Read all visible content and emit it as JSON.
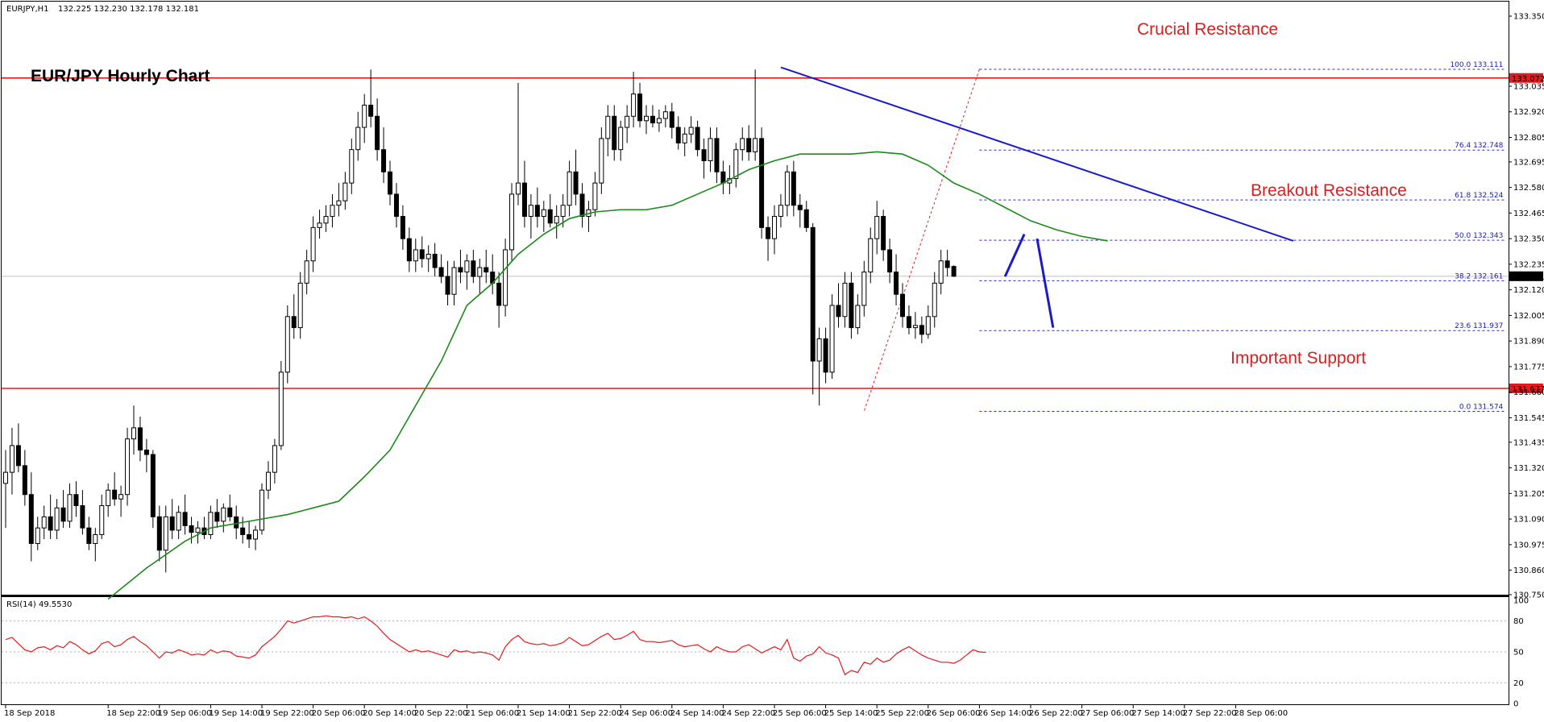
{
  "header": {
    "instrument": "EURJPY,H1",
    "ohlc": "132.225 132.230 132.178 132.181",
    "chart_title": "EUR/JPY Hourly Chart"
  },
  "rsi_header": "RSI(14) 49.5530",
  "annotations": {
    "crucial_resistance": "Crucial Resistance",
    "breakout_resistance": "Breakout Resistance",
    "important_support": "Important Support"
  },
  "colors": {
    "resistance_line": "#e01c1c",
    "trend_line": "#1a1acd",
    "moving_average": "#1a8a1a",
    "rsi_line": "#e01c1c",
    "fib_lines": "#2a2ad0",
    "candle": "#000000",
    "annotation_text": "#d42020"
  },
  "chart_data": {
    "type": "candlestick",
    "price_axis": {
      "ylim": [
        130.75,
        133.35
      ],
      "ticks": [
        133.35,
        133.035,
        132.92,
        132.805,
        132.695,
        132.58,
        132.465,
        132.35,
        132.235,
        132.12,
        132.005,
        131.89,
        131.775,
        131.66,
        131.545,
        131.435,
        131.32,
        131.205,
        131.09,
        130.975,
        130.86,
        130.75
      ],
      "tick_labels": [
        "133.350",
        "133.035",
        "132.920",
        "132.805",
        "132.695",
        "132.580",
        "132.465",
        "132.350",
        "132.235",
        "132.120",
        "132.005",
        "131.890",
        "131.775",
        "131.660",
        "131.545",
        "131.435",
        "131.320",
        "131.205",
        "131.090",
        "130.975",
        "130.860",
        "130.750"
      ],
      "current_price": 132.181,
      "current_price_label": "132.181"
    },
    "time_axis": {
      "labels": [
        "18 Sep 2018",
        "18 Sep 22:00",
        "19 Sep 06:00",
        "19 Sep 14:00",
        "19 Sep 22:00",
        "20 Sep 06:00",
        "20 Sep 14:00",
        "20 Sep 22:00",
        "21 Sep 06:00",
        "21 Sep 14:00",
        "21 Sep 22:00",
        "24 Sep 06:00",
        "24 Sep 14:00",
        "24 Sep 22:00",
        "25 Sep 06:00",
        "25 Sep 14:00",
        "25 Sep 22:00",
        "26 Sep 06:00",
        "26 Sep 14:00",
        "26 Sep 22:00",
        "27 Sep 06:00",
        "27 Sep 14:00",
        "27 Sep 22:00",
        "28 Sep 06:00"
      ],
      "bar_index": [
        0,
        16,
        24,
        32,
        40,
        48,
        56,
        64,
        72,
        80,
        88,
        96,
        104,
        112,
        120,
        128,
        136,
        144,
        152,
        160,
        168,
        176,
        184,
        192
      ]
    },
    "horizontal_levels": [
      {
        "name": "Crucial Resistance",
        "price": 133.072,
        "label": "133.072"
      },
      {
        "name": "Important Support",
        "price": 131.677,
        "label": "131.677"
      }
    ],
    "fibonacci": {
      "levels": [
        {
          "label": "100.0 133.111",
          "price": 133.111
        },
        {
          "label": "76.4 132.748",
          "price": 132.748
        },
        {
          "label": "61.8 132.524",
          "price": 132.524
        },
        {
          "label": "50.0 132.343",
          "price": 132.343
        },
        {
          "label": "38.2 132.161",
          "price": 132.161
        },
        {
          "label": "23.6 131.937",
          "price": 131.937
        },
        {
          "label": "0.0 131.574",
          "price": 131.574
        }
      ],
      "from_bar": 152,
      "to_bar": 234
    },
    "trend_line": {
      "x1": 121,
      "y1": 133.12,
      "x2": 201,
      "y2": 132.34
    },
    "moving_average": [
      [
        16,
        130.73
      ],
      [
        22,
        130.87
      ],
      [
        28,
        130.99
      ],
      [
        32,
        131.05
      ],
      [
        36,
        131.07
      ],
      [
        40,
        131.09
      ],
      [
        44,
        131.11
      ],
      [
        48,
        131.14
      ],
      [
        52,
        131.17
      ],
      [
        56,
        131.28
      ],
      [
        60,
        131.4
      ],
      [
        64,
        131.6
      ],
      [
        68,
        131.8
      ],
      [
        72,
        132.05
      ],
      [
        76,
        132.15
      ],
      [
        80,
        132.28
      ],
      [
        84,
        132.37
      ],
      [
        88,
        132.44
      ],
      [
        92,
        132.47
      ],
      [
        96,
        132.48
      ],
      [
        100,
        132.48
      ],
      [
        104,
        132.5
      ],
      [
        108,
        132.55
      ],
      [
        112,
        132.6
      ],
      [
        116,
        132.66
      ],
      [
        120,
        132.7
      ],
      [
        124,
        132.73
      ],
      [
        128,
        132.73
      ],
      [
        132,
        132.73
      ],
      [
        136,
        132.74
      ],
      [
        140,
        132.73
      ],
      [
        144,
        132.68
      ],
      [
        148,
        132.6
      ],
      [
        152,
        132.55
      ],
      [
        156,
        132.49
      ],
      [
        160,
        132.43
      ],
      [
        164,
        132.39
      ],
      [
        168,
        132.36
      ],
      [
        172,
        132.34
      ]
    ],
    "candles": [
      [
        131.25,
        131.4,
        131.05,
        131.3
      ],
      [
        131.3,
        131.5,
        131.2,
        131.42
      ],
      [
        131.42,
        131.52,
        131.3,
        131.33
      ],
      [
        131.33,
        131.4,
        131.15,
        131.2
      ],
      [
        131.2,
        131.3,
        130.9,
        130.98
      ],
      [
        130.98,
        131.1,
        130.95,
        131.05
      ],
      [
        131.05,
        131.15,
        131.0,
        131.1
      ],
      [
        131.1,
        131.2,
        131.0,
        131.04
      ],
      [
        131.04,
        131.18,
        131.0,
        131.14
      ],
      [
        131.14,
        131.22,
        131.05,
        131.08
      ],
      [
        131.08,
        131.25,
        131.05,
        131.2
      ],
      [
        131.2,
        131.26,
        131.1,
        131.15
      ],
      [
        131.15,
        131.22,
        131.02,
        131.05
      ],
      [
        131.05,
        131.1,
        130.95,
        130.98
      ],
      [
        130.98,
        131.05,
        130.9,
        131.02
      ],
      [
        131.02,
        131.2,
        131.0,
        131.15
      ],
      [
        131.15,
        131.25,
        131.1,
        131.22
      ],
      [
        131.22,
        131.3,
        131.15,
        131.18
      ],
      [
        131.18,
        131.24,
        131.1,
        131.2
      ],
      [
        131.2,
        131.5,
        131.15,
        131.45
      ],
      [
        131.45,
        131.6,
        131.38,
        131.5
      ],
      [
        131.5,
        131.55,
        131.35,
        131.4
      ],
      [
        131.4,
        131.45,
        131.3,
        131.38
      ],
      [
        131.38,
        131.4,
        131.05,
        131.1
      ],
      [
        131.1,
        131.15,
        130.9,
        130.95
      ],
      [
        130.95,
        131.15,
        130.85,
        131.1
      ],
      [
        131.1,
        131.18,
        131.0,
        131.04
      ],
      [
        131.04,
        131.15,
        131.0,
        131.12
      ],
      [
        131.12,
        131.2,
        131.02,
        131.06
      ],
      [
        131.06,
        131.1,
        130.98,
        131.03
      ],
      [
        131.03,
        131.08,
        130.98,
        131.05
      ],
      [
        131.05,
        131.1,
        131.0,
        131.02
      ],
      [
        131.02,
        131.15,
        131.0,
        131.12
      ],
      [
        131.12,
        131.18,
        131.05,
        131.08
      ],
      [
        131.08,
        131.16,
        131.03,
        131.14
      ],
      [
        131.14,
        131.2,
        131.08,
        131.1
      ],
      [
        131.1,
        131.15,
        131.0,
        131.05
      ],
      [
        131.05,
        131.1,
        130.98,
        131.02
      ],
      [
        131.02,
        131.08,
        130.96,
        131.0
      ],
      [
        131.0,
        131.06,
        130.95,
        131.04
      ],
      [
        131.04,
        131.25,
        131.02,
        131.22
      ],
      [
        131.22,
        131.35,
        131.18,
        131.3
      ],
      [
        131.3,
        131.45,
        131.25,
        131.42
      ],
      [
        131.42,
        131.8,
        131.4,
        131.75
      ],
      [
        131.75,
        132.05,
        131.7,
        132.0
      ],
      [
        132.0,
        132.1,
        131.9,
        131.95
      ],
      [
        131.95,
        132.2,
        131.9,
        132.15
      ],
      [
        132.15,
        132.3,
        132.1,
        132.25
      ],
      [
        132.25,
        132.45,
        132.2,
        132.4
      ],
      [
        132.4,
        132.48,
        132.35,
        132.42
      ],
      [
        132.42,
        132.5,
        132.38,
        132.45
      ],
      [
        132.45,
        132.55,
        132.4,
        132.5
      ],
      [
        132.5,
        132.6,
        132.45,
        132.52
      ],
      [
        132.52,
        132.65,
        132.48,
        132.6
      ],
      [
        132.6,
        132.8,
        132.55,
        132.75
      ],
      [
        132.75,
        132.92,
        132.7,
        132.85
      ],
      [
        132.85,
        133.0,
        132.78,
        132.95
      ],
      [
        132.95,
        133.11,
        132.85,
        132.9
      ],
      [
        132.9,
        132.98,
        132.7,
        132.75
      ],
      [
        132.75,
        132.85,
        132.6,
        132.65
      ],
      [
        132.65,
        132.7,
        132.5,
        132.55
      ],
      [
        132.55,
        132.6,
        132.4,
        132.45
      ],
      [
        132.45,
        132.5,
        132.3,
        132.35
      ],
      [
        132.35,
        132.4,
        132.2,
        132.25
      ],
      [
        132.25,
        132.35,
        132.2,
        132.3
      ],
      [
        132.3,
        132.36,
        132.22,
        132.26
      ],
      [
        132.26,
        132.32,
        132.2,
        132.28
      ],
      [
        132.28,
        132.33,
        132.18,
        132.22
      ],
      [
        132.22,
        132.28,
        132.15,
        132.18
      ],
      [
        132.18,
        132.25,
        132.05,
        132.1
      ],
      [
        132.1,
        132.25,
        132.05,
        132.22
      ],
      [
        132.22,
        132.3,
        132.15,
        132.2
      ],
      [
        132.2,
        132.28,
        132.12,
        132.25
      ],
      [
        132.25,
        132.3,
        132.15,
        132.18
      ],
      [
        132.18,
        132.26,
        132.1,
        132.22
      ],
      [
        132.22,
        132.3,
        132.15,
        132.2
      ],
      [
        132.2,
        132.28,
        132.1,
        132.15
      ],
      [
        132.15,
        132.2,
        131.95,
        132.05
      ],
      [
        132.05,
        132.35,
        132.0,
        132.3
      ],
      [
        132.3,
        132.6,
        132.25,
        132.55
      ],
      [
        132.55,
        133.05,
        132.5,
        132.6
      ],
      [
        132.6,
        132.7,
        132.4,
        132.45
      ],
      [
        132.45,
        132.55,
        132.35,
        132.5
      ],
      [
        132.5,
        132.58,
        132.4,
        132.45
      ],
      [
        132.45,
        132.52,
        132.38,
        132.48
      ],
      [
        132.48,
        132.55,
        132.4,
        132.42
      ],
      [
        132.42,
        132.5,
        132.35,
        132.45
      ],
      [
        132.45,
        132.55,
        132.4,
        132.5
      ],
      [
        132.5,
        132.7,
        132.45,
        132.65
      ],
      [
        132.65,
        132.75,
        132.5,
        132.55
      ],
      [
        132.55,
        132.6,
        132.4,
        132.45
      ],
      [
        132.45,
        132.52,
        132.38,
        132.48
      ],
      [
        132.48,
        132.65,
        132.45,
        132.6
      ],
      [
        132.6,
        132.85,
        132.55,
        132.8
      ],
      [
        132.8,
        132.95,
        132.72,
        132.9
      ],
      [
        132.9,
        132.95,
        132.7,
        132.75
      ],
      [
        132.75,
        132.88,
        132.7,
        132.85
      ],
      [
        132.85,
        132.95,
        132.78,
        132.9
      ],
      [
        132.9,
        133.1,
        132.85,
        133.0
      ],
      [
        133.0,
        133.05,
        132.85,
        132.88
      ],
      [
        132.88,
        132.95,
        132.82,
        132.9
      ],
      [
        132.9,
        132.95,
        132.85,
        132.87
      ],
      [
        132.87,
        132.93,
        132.83,
        132.89
      ],
      [
        132.89,
        132.95,
        132.85,
        132.92
      ],
      [
        132.92,
        132.96,
        132.8,
        132.85
      ],
      [
        132.85,
        132.9,
        132.75,
        132.78
      ],
      [
        132.78,
        132.85,
        132.72,
        132.82
      ],
      [
        132.82,
        132.9,
        132.78,
        132.85
      ],
      [
        132.85,
        132.88,
        132.72,
        132.75
      ],
      [
        132.75,
        132.8,
        132.62,
        132.7
      ],
      [
        132.7,
        132.85,
        132.65,
        132.8
      ],
      [
        132.8,
        132.85,
        132.6,
        132.65
      ],
      [
        132.65,
        132.7,
        132.55,
        132.6
      ],
      [
        132.6,
        132.68,
        132.55,
        132.62
      ],
      [
        132.62,
        132.78,
        132.58,
        132.75
      ],
      [
        132.75,
        132.85,
        132.7,
        132.8
      ],
      [
        132.8,
        132.86,
        132.7,
        132.74
      ],
      [
        132.74,
        133.11,
        132.7,
        132.8
      ],
      [
        132.8,
        132.85,
        132.35,
        132.4
      ],
      [
        132.4,
        132.45,
        132.25,
        132.35
      ],
      [
        132.35,
        132.5,
        132.28,
        132.45
      ],
      [
        132.45,
        132.55,
        132.4,
        132.5
      ],
      [
        132.5,
        132.68,
        132.45,
        132.65
      ],
      [
        132.65,
        132.7,
        132.45,
        132.5
      ],
      [
        132.5,
        132.55,
        132.4,
        132.48
      ],
      [
        132.48,
        132.52,
        132.38,
        132.4
      ],
      [
        132.4,
        132.42,
        131.65,
        131.8
      ],
      [
        131.8,
        131.95,
        131.6,
        131.9
      ],
      [
        131.9,
        131.95,
        131.7,
        131.75
      ],
      [
        131.75,
        132.1,
        131.72,
        132.05
      ],
      [
        132.05,
        132.15,
        131.95,
        132.0
      ],
      [
        132.0,
        132.2,
        131.95,
        132.15
      ],
      [
        132.15,
        132.2,
        131.9,
        131.95
      ],
      [
        131.95,
        132.1,
        131.92,
        132.05
      ],
      [
        132.05,
        132.25,
        132.0,
        132.2
      ],
      [
        132.2,
        132.4,
        132.15,
        132.35
      ],
      [
        132.35,
        132.52,
        132.28,
        132.45
      ],
      [
        132.45,
        132.48,
        132.25,
        132.3
      ],
      [
        132.3,
        132.35,
        132.15,
        132.2
      ],
      [
        132.2,
        132.28,
        132.05,
        132.1
      ],
      [
        132.1,
        132.15,
        131.95,
        132.0
      ],
      [
        132.0,
        132.05,
        131.92,
        131.95
      ],
      [
        131.95,
        132.02,
        131.9,
        131.96
      ],
      [
        131.96,
        132.0,
        131.88,
        131.92
      ],
      [
        131.92,
        132.05,
        131.9,
        132.0
      ],
      [
        132.0,
        132.2,
        131.95,
        132.15
      ],
      [
        132.15,
        132.3,
        132.1,
        132.25
      ],
      [
        132.25,
        132.3,
        132.18,
        132.22
      ],
      [
        132.225,
        132.23,
        132.178,
        132.181
      ]
    ],
    "rsi": {
      "ylim": [
        0,
        100
      ],
      "ticks": [
        100,
        80,
        50,
        20,
        0
      ],
      "tick_labels": [
        "100",
        "80",
        "50",
        "20",
        "0"
      ],
      "values": [
        62,
        64,
        58,
        52,
        50,
        54,
        55,
        52,
        56,
        54,
        60,
        57,
        52,
        48,
        51,
        58,
        60,
        55,
        57,
        62,
        65,
        60,
        56,
        50,
        44,
        50,
        49,
        52,
        50,
        47,
        48,
        47,
        52,
        49,
        51,
        50,
        46,
        45,
        44,
        47,
        55,
        60,
        65,
        72,
        80,
        78,
        80,
        82,
        84,
        84,
        85,
        84,
        84,
        83,
        84,
        82,
        84,
        80,
        75,
        68,
        62,
        58,
        54,
        50,
        52,
        50,
        51,
        49,
        47,
        45,
        52,
        50,
        51,
        49,
        50,
        49,
        47,
        42,
        55,
        62,
        66,
        60,
        58,
        57,
        58,
        56,
        57,
        59,
        64,
        60,
        56,
        57,
        61,
        65,
        68,
        62,
        63,
        66,
        70,
        62,
        60,
        60,
        59,
        60,
        61,
        57,
        55,
        56,
        57,
        53,
        50,
        55,
        52,
        50,
        50,
        55,
        57,
        53,
        49,
        52,
        55,
        52,
        62,
        44,
        41,
        46,
        48,
        55,
        49,
        47,
        44,
        28,
        32,
        30,
        40,
        38,
        44,
        40,
        42,
        48,
        52,
        55,
        51,
        47,
        44,
        42,
        40,
        40,
        39,
        42,
        47,
        52,
        50,
        49.55
      ]
    }
  }
}
